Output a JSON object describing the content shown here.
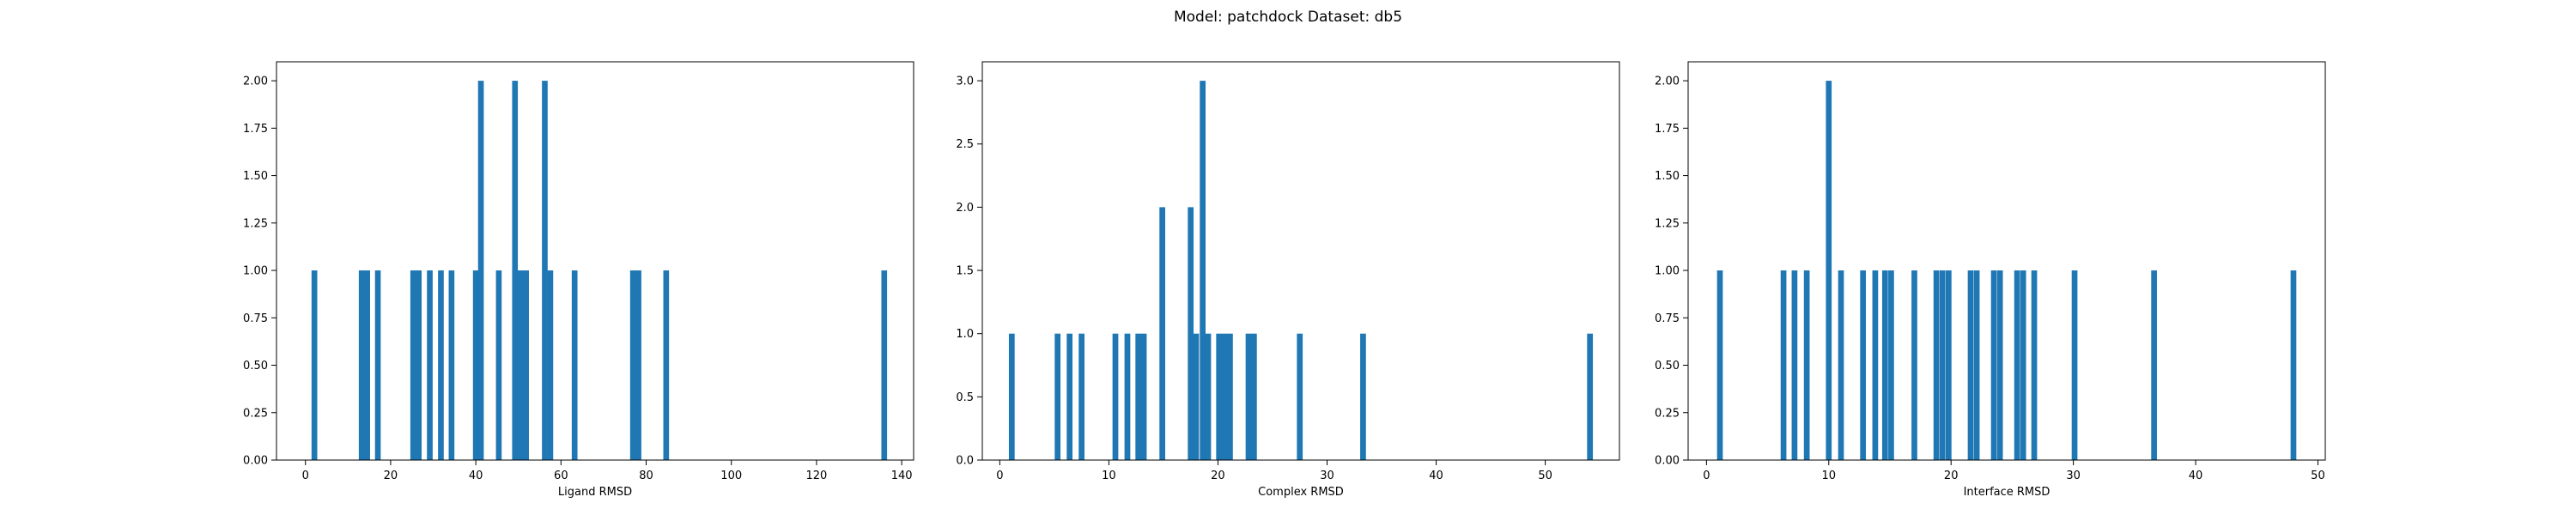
{
  "figure": {
    "title": "Model: patchdock Dataset: db5"
  },
  "chart_data": [
    {
      "type": "bar",
      "xlabel": "Ligand RMSD",
      "ylabel": "",
      "xlim": [
        -6.8,
        142.8
      ],
      "ylim": [
        0,
        2.1
      ],
      "xticks": [
        0,
        20,
        40,
        60,
        80,
        100,
        120,
        140
      ],
      "xtick_labels": [
        "0",
        "20",
        "40",
        "60",
        "80",
        "100",
        "120",
        "140"
      ],
      "yticks": [
        0,
        0.25,
        0.5,
        0.75,
        1.0,
        1.25,
        1.5,
        1.75,
        2.0
      ],
      "ytick_labels": [
        "0.00",
        "0.25",
        "0.50",
        "0.75",
        "1.00",
        "1.25",
        "1.50",
        "1.75",
        "2.00"
      ],
      "bar_width": 1.34,
      "color": "#1f77b4",
      "bars": [
        {
          "x": 2.1,
          "y": 1
        },
        {
          "x": 13.2,
          "y": 1
        },
        {
          "x": 14.5,
          "y": 1
        },
        {
          "x": 17.0,
          "y": 1
        },
        {
          "x": 25.3,
          "y": 1
        },
        {
          "x": 26.6,
          "y": 1
        },
        {
          "x": 29.2,
          "y": 1
        },
        {
          "x": 31.8,
          "y": 1
        },
        {
          "x": 34.3,
          "y": 1
        },
        {
          "x": 40.0,
          "y": 1
        },
        {
          "x": 41.2,
          "y": 2
        },
        {
          "x": 45.4,
          "y": 1
        },
        {
          "x": 49.2,
          "y": 2
        },
        {
          "x": 50.5,
          "y": 1
        },
        {
          "x": 51.8,
          "y": 1
        },
        {
          "x": 56.2,
          "y": 2
        },
        {
          "x": 57.5,
          "y": 1
        },
        {
          "x": 63.2,
          "y": 1
        },
        {
          "x": 76.9,
          "y": 1
        },
        {
          "x": 78.2,
          "y": 1
        },
        {
          "x": 84.7,
          "y": 1
        },
        {
          "x": 135.9,
          "y": 1
        }
      ]
    },
    {
      "type": "bar",
      "xlabel": "Complex RMSD",
      "ylabel": "",
      "xlim": [
        -1.6,
        56.8
      ],
      "ylim": [
        0,
        3.15
      ],
      "xticks": [
        0,
        10,
        20,
        30,
        40,
        50
      ],
      "xtick_labels": [
        "0",
        "10",
        "20",
        "30",
        "40",
        "50"
      ],
      "yticks": [
        0,
        0.5,
        1.0,
        1.5,
        2.0,
        2.5,
        3.0
      ],
      "ytick_labels": [
        "0.0",
        "0.5",
        "1.0",
        "1.5",
        "2.0",
        "2.5",
        "3.0"
      ],
      "bar_width": 0.53,
      "color": "#1f77b4",
      "bars": [
        {
          "x": 1.1,
          "y": 1
        },
        {
          "x": 5.3,
          "y": 1
        },
        {
          "x": 6.4,
          "y": 1
        },
        {
          "x": 7.5,
          "y": 1
        },
        {
          "x": 10.6,
          "y": 1
        },
        {
          "x": 11.7,
          "y": 1
        },
        {
          "x": 12.7,
          "y": 1
        },
        {
          "x": 13.2,
          "y": 1
        },
        {
          "x": 14.9,
          "y": 2
        },
        {
          "x": 17.5,
          "y": 2
        },
        {
          "x": 18.0,
          "y": 1
        },
        {
          "x": 18.6,
          "y": 3
        },
        {
          "x": 19.1,
          "y": 1
        },
        {
          "x": 20.1,
          "y": 1
        },
        {
          "x": 20.6,
          "y": 1
        },
        {
          "x": 21.1,
          "y": 1
        },
        {
          "x": 22.8,
          "y": 1
        },
        {
          "x": 23.3,
          "y": 1
        },
        {
          "x": 27.5,
          "y": 1
        },
        {
          "x": 33.3,
          "y": 1
        },
        {
          "x": 54.1,
          "y": 1
        }
      ]
    },
    {
      "type": "bar",
      "xlabel": "Interface RMSD",
      "ylabel": "",
      "xlim": [
        -1.5,
        50.6
      ],
      "ylim": [
        0,
        2.1
      ],
      "xticks": [
        0,
        10,
        20,
        30,
        40,
        50
      ],
      "xtick_labels": [
        "0",
        "10",
        "20",
        "30",
        "40",
        "50"
      ],
      "yticks": [
        0,
        0.25,
        0.5,
        0.75,
        1.0,
        1.25,
        1.5,
        1.75,
        2.0
      ],
      "ytick_labels": [
        "0.00",
        "0.25",
        "0.50",
        "0.75",
        "1.00",
        "1.25",
        "1.50",
        "1.75",
        "2.00"
      ],
      "bar_width": 0.47,
      "color": "#1f77b4",
      "bars": [
        {
          "x": 1.1,
          "y": 1
        },
        {
          "x": 6.3,
          "y": 1
        },
        {
          "x": 7.2,
          "y": 1
        },
        {
          "x": 8.2,
          "y": 1
        },
        {
          "x": 10.0,
          "y": 2
        },
        {
          "x": 11.0,
          "y": 1
        },
        {
          "x": 12.8,
          "y": 1
        },
        {
          "x": 13.8,
          "y": 1
        },
        {
          "x": 14.6,
          "y": 1
        },
        {
          "x": 15.1,
          "y": 1
        },
        {
          "x": 17.0,
          "y": 1
        },
        {
          "x": 18.8,
          "y": 1
        },
        {
          "x": 19.3,
          "y": 1
        },
        {
          "x": 19.8,
          "y": 1
        },
        {
          "x": 21.6,
          "y": 1
        },
        {
          "x": 22.1,
          "y": 1
        },
        {
          "x": 23.5,
          "y": 1
        },
        {
          "x": 24.0,
          "y": 1
        },
        {
          "x": 25.4,
          "y": 1
        },
        {
          "x": 25.9,
          "y": 1
        },
        {
          "x": 26.8,
          "y": 1
        },
        {
          "x": 30.1,
          "y": 1
        },
        {
          "x": 36.6,
          "y": 1
        },
        {
          "x": 48.0,
          "y": 1
        }
      ]
    }
  ]
}
